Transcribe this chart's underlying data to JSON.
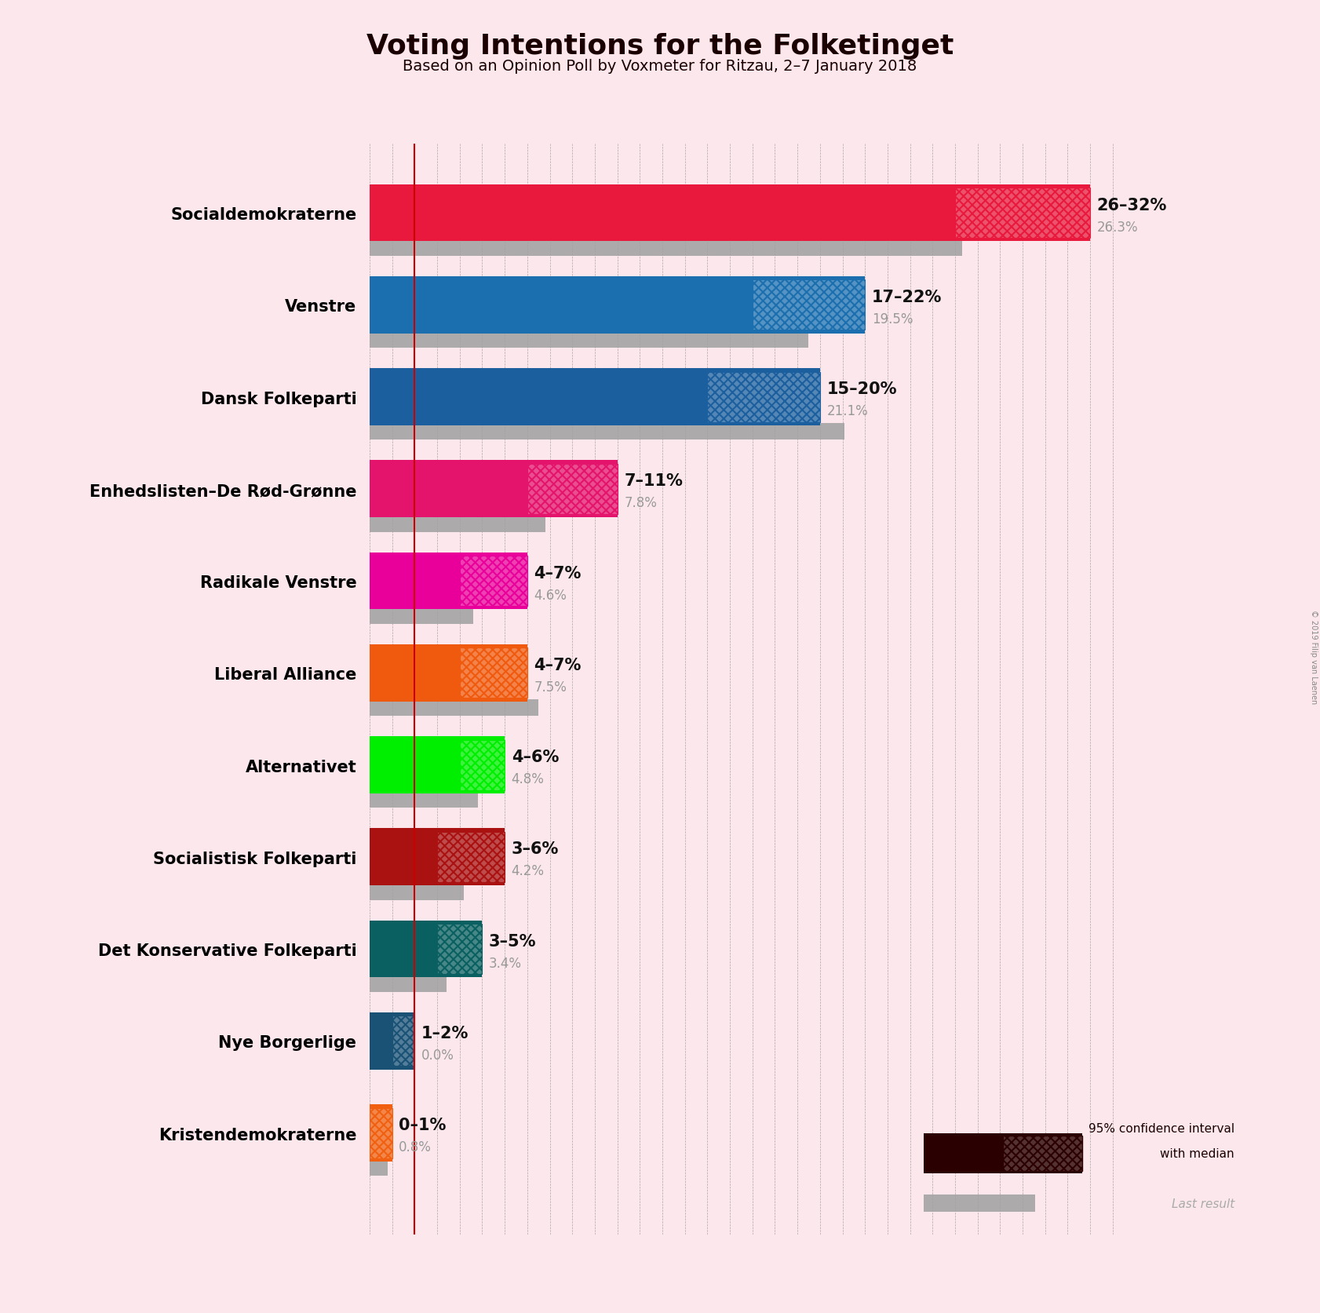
{
  "title": "Voting Intentions for the Folketinget",
  "subtitle": "Based on an Opinion Poll by Voxmeter for Ritzau, 2–7 January 2018",
  "background_color": "#fce8ec",
  "copyright": "© 2019 Filip van Laenen",
  "parties": [
    {
      "name": "Socialdemokraterne",
      "ci_low": 26,
      "ci_high": 32,
      "last_result": 26.3,
      "color": "#e8193c",
      "label": "26–32%",
      "last_label": "26.3%"
    },
    {
      "name": "Venstre",
      "ci_low": 17,
      "ci_high": 22,
      "last_result": 19.5,
      "color": "#1c6faf",
      "label": "17–22%",
      "last_label": "19.5%"
    },
    {
      "name": "Dansk Folkeparti",
      "ci_low": 15,
      "ci_high": 20,
      "last_result": 21.1,
      "color": "#1c5f9e",
      "label": "15–20%",
      "last_label": "21.1%"
    },
    {
      "name": "Enhedslisten–De Rød-Grønne",
      "ci_low": 7,
      "ci_high": 11,
      "last_result": 7.8,
      "color": "#e4136b",
      "label": "7–11%",
      "last_label": "7.8%"
    },
    {
      "name": "Radikale Venstre",
      "ci_low": 4,
      "ci_high": 7,
      "last_result": 4.6,
      "color": "#e9009a",
      "label": "4–7%",
      "last_label": "4.6%"
    },
    {
      "name": "Liberal Alliance",
      "ci_low": 4,
      "ci_high": 7,
      "last_result": 7.5,
      "color": "#f05a0e",
      "label": "4–7%",
      "last_label": "7.5%"
    },
    {
      "name": "Alternativet",
      "ci_low": 4,
      "ci_high": 6,
      "last_result": 4.8,
      "color": "#00ee00",
      "label": "4–6%",
      "last_label": "4.8%"
    },
    {
      "name": "Socialistisk Folkeparti",
      "ci_low": 3,
      "ci_high": 6,
      "last_result": 4.2,
      "color": "#aa1111",
      "label": "3–6%",
      "last_label": "4.2%"
    },
    {
      "name": "Det Konservative Folkeparti",
      "ci_low": 3,
      "ci_high": 5,
      "last_result": 3.4,
      "color": "#0a6060",
      "label": "3–5%",
      "last_label": "3.4%"
    },
    {
      "name": "Nye Borgerlige",
      "ci_low": 1,
      "ci_high": 2,
      "last_result": 0.0,
      "color": "#1a5276",
      "label": "1–2%",
      "last_label": "0.0%"
    },
    {
      "name": "Kristendemokraterne",
      "ci_low": 0,
      "ci_high": 1,
      "last_result": 0.8,
      "color": "#f06010",
      "label": "0–1%",
      "last_label": "0.8%"
    }
  ],
  "x_max": 34,
  "red_line_x": 2.0,
  "bar_height": 0.62,
  "last_bar_height": 0.18,
  "label_fontsize": 15,
  "last_label_fontsize": 12,
  "name_fontsize": 15,
  "legend_color": "#2b0000"
}
